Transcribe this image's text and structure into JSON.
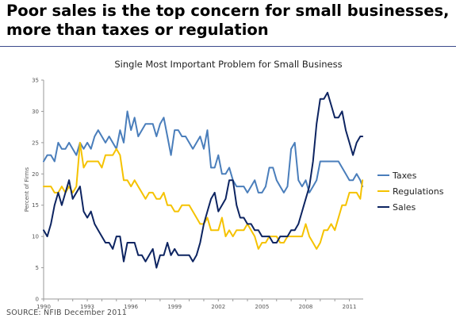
{
  "headline": "Poor sales is the top concern for small businesses, more than taxes or regulation",
  "source": "SOURCE: NFIB December 2011",
  "chart_data": {
    "type": "line",
    "title": "Single Most Important Problem for Small Business",
    "ylabel": "Percent of Firms",
    "xlabel": "",
    "ylim": [
      0,
      35
    ],
    "yticks": [
      0,
      5,
      10,
      15,
      20,
      25,
      30,
      35
    ],
    "xlim": [
      1990,
      2011.95
    ],
    "xticks": [
      1990,
      1993,
      1996,
      1999,
      2002,
      2005,
      2008,
      2011
    ],
    "grid": false,
    "legend": "right",
    "series": [
      {
        "name": "Taxes",
        "color": "#4a7ebb",
        "x": [
          1990,
          1990.25,
          1990.5,
          1990.75,
          1991,
          1991.25,
          1991.5,
          1991.75,
          1992,
          1992.25,
          1992.5,
          1992.75,
          1993,
          1993.25,
          1993.5,
          1993.75,
          1994,
          1994.25,
          1994.5,
          1994.75,
          1995,
          1995.25,
          1995.5,
          1995.75,
          1996,
          1996.25,
          1996.5,
          1996.75,
          1997,
          1997.25,
          1997.5,
          1997.75,
          1998,
          1998.25,
          1998.5,
          1998.75,
          1999,
          1999.25,
          1999.5,
          1999.75,
          2000,
          2000.25,
          2000.5,
          2000.75,
          2001,
          2001.25,
          2001.5,
          2001.75,
          2002,
          2002.25,
          2002.5,
          2002.75,
          2003,
          2003.25,
          2003.5,
          2003.75,
          2004,
          2004.25,
          2004.5,
          2004.75,
          2005,
          2005.25,
          2005.5,
          2005.75,
          2006,
          2006.25,
          2006.5,
          2006.75,
          2007,
          2007.25,
          2007.5,
          2007.75,
          2008,
          2008.25,
          2008.5,
          2008.75,
          2009,
          2009.25,
          2009.5,
          2009.75,
          2010,
          2010.25,
          2010.5,
          2010.75,
          2011,
          2011.25,
          2011.5,
          2011.75,
          2011.9
        ],
        "values": [
          22,
          23,
          23,
          22,
          25,
          24,
          24,
          25,
          24,
          23,
          25,
          24,
          25,
          24,
          26,
          27,
          26,
          25,
          26,
          25,
          24,
          27,
          25,
          30,
          27,
          29,
          26,
          27,
          28,
          28,
          28,
          26,
          28,
          29,
          26,
          23,
          27,
          27,
          26,
          26,
          25,
          24,
          25,
          26,
          24,
          27,
          21,
          21,
          23,
          20,
          20,
          21,
          19,
          18,
          18,
          18,
          17,
          18,
          19,
          17,
          17,
          18,
          21,
          21,
          19,
          18,
          17,
          18,
          24,
          25,
          19,
          18,
          19,
          17,
          18,
          19,
          22,
          22,
          22,
          22,
          22,
          22,
          21,
          20,
          19,
          19,
          20,
          19,
          18
        ]
      },
      {
        "name": "Regulations",
        "color": "#f5c200",
        "x": [
          1990,
          1990.25,
          1990.5,
          1990.75,
          1991,
          1991.25,
          1991.5,
          1991.75,
          1992,
          1992.25,
          1992.5,
          1992.75,
          1993,
          1993.25,
          1993.5,
          1993.75,
          1994,
          1994.25,
          1994.5,
          1994.75,
          1995,
          1995.25,
          1995.5,
          1995.75,
          1996,
          1996.25,
          1996.5,
          1996.75,
          1997,
          1997.25,
          1997.5,
          1997.75,
          1998,
          1998.25,
          1998.5,
          1998.75,
          1999,
          1999.25,
          1999.5,
          1999.75,
          2000,
          2000.25,
          2000.5,
          2000.75,
          2001,
          2001.25,
          2001.5,
          2001.75,
          2002,
          2002.25,
          2002.5,
          2002.75,
          2003,
          2003.25,
          2003.5,
          2003.75,
          2004,
          2004.25,
          2004.5,
          2004.75,
          2005,
          2005.25,
          2005.5,
          2005.75,
          2006,
          2006.25,
          2006.5,
          2006.75,
          2007,
          2007.25,
          2007.5,
          2007.75,
          2008,
          2008.25,
          2008.5,
          2008.75,
          2009,
          2009.25,
          2009.5,
          2009.75,
          2010,
          2010.25,
          2010.5,
          2010.75,
          2011,
          2011.25,
          2011.5,
          2011.75,
          2011.9
        ],
        "values": [
          18,
          18,
          18,
          17,
          17,
          18,
          17,
          18,
          17,
          18,
          25,
          21,
          22,
          22,
          22,
          22,
          21,
          23,
          23,
          23,
          24,
          23,
          19,
          19,
          18,
          19,
          18,
          17,
          16,
          17,
          17,
          16,
          16,
          17,
          15,
          15,
          14,
          14,
          15,
          15,
          15,
          14,
          13,
          12,
          12,
          13,
          11,
          11,
          11,
          13,
          10,
          11,
          10,
          11,
          11,
          11,
          12,
          11,
          10,
          8,
          9,
          9,
          10,
          10,
          10,
          9,
          9,
          10,
          10,
          10,
          10,
          10,
          12,
          10,
          9,
          8,
          9,
          11,
          11,
          12,
          11,
          13,
          15,
          15,
          17,
          17,
          17,
          16,
          19
        ]
      },
      {
        "name": "Sales",
        "color": "#0d2461",
        "x": [
          1990,
          1990.25,
          1990.5,
          1990.75,
          1991,
          1991.25,
          1991.5,
          1991.75,
          1992,
          1992.25,
          1992.5,
          1992.75,
          1993,
          1993.25,
          1993.5,
          1993.75,
          1994,
          1994.25,
          1994.5,
          1994.75,
          1995,
          1995.25,
          1995.5,
          1995.75,
          1996,
          1996.25,
          1996.5,
          1996.75,
          1997,
          1997.25,
          1997.5,
          1997.75,
          1998,
          1998.25,
          1998.5,
          1998.75,
          1999,
          1999.25,
          1999.5,
          1999.75,
          2000,
          2000.25,
          2000.5,
          2000.75,
          2001,
          2001.25,
          2001.5,
          2001.75,
          2002,
          2002.25,
          2002.5,
          2002.75,
          2003,
          2003.25,
          2003.5,
          2003.75,
          2004,
          2004.25,
          2004.5,
          2004.75,
          2005,
          2005.25,
          2005.5,
          2005.75,
          2006,
          2006.25,
          2006.5,
          2006.75,
          2007,
          2007.25,
          2007.5,
          2007.75,
          2008,
          2008.25,
          2008.5,
          2008.75,
          2009,
          2009.25,
          2009.5,
          2009.75,
          2010,
          2010.25,
          2010.5,
          2010.75,
          2011,
          2011.25,
          2011.5,
          2011.75,
          2011.9
        ],
        "values": [
          11,
          10,
          12,
          15,
          17,
          15,
          17,
          19,
          16,
          17,
          18,
          14,
          13,
          14,
          12,
          11,
          10,
          9,
          9,
          8,
          10,
          10,
          6,
          9,
          9,
          9,
          7,
          7,
          6,
          7,
          8,
          5,
          7,
          7,
          9,
          7,
          8,
          7,
          7,
          7,
          7,
          6,
          7,
          9,
          12,
          14,
          16,
          17,
          14,
          15,
          16,
          19,
          19,
          15,
          13,
          13,
          12,
          12,
          11,
          11,
          10,
          10,
          10,
          9,
          9,
          10,
          10,
          10,
          11,
          11,
          12,
          14,
          16,
          18,
          22,
          28,
          32,
          32,
          33,
          31,
          29,
          29,
          30,
          27,
          25,
          23,
          25,
          26,
          26
        ]
      }
    ]
  }
}
